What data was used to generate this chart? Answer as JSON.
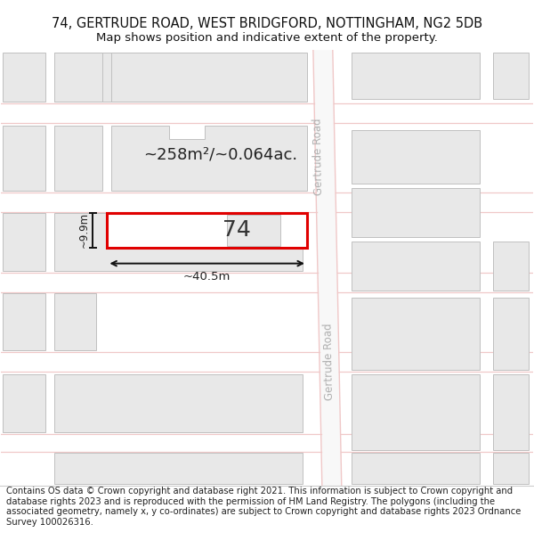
{
  "title_line1": "74, GERTRUDE ROAD, WEST BRIDGFORD, NOTTINGHAM, NG2 5DB",
  "title_line2": "Map shows position and indicative extent of the property.",
  "footer_text": "Contains OS data © Crown copyright and database right 2021. This information is subject to Crown copyright and database rights 2023 and is reproduced with the permission of HM Land Registry. The polygons (including the associated geometry, namely x, y co-ordinates) are subject to Crown copyright and database rights 2023 Ordnance Survey 100026316.",
  "bg_color": "#ffffff",
  "road_color": "#f0c8c8",
  "building_fill": "#e8e8e8",
  "building_edge": "#c0c0c0",
  "road_fill": "#f8f8f8",
  "highlight_fill": "#ffffff",
  "highlight_stroke": "#e00000",
  "road_label": "Gertrude Road",
  "property_label": "74",
  "area_label": "~258m²/~0.064ac.",
  "width_label": "~40.5m",
  "height_label": "~9.9m",
  "title_fontsize": 10.5,
  "subtitle_fontsize": 9.5,
  "footer_fontsize": 7.2,
  "road_label_fontsize": 8.5,
  "prop_num_fontsize": 18,
  "area_fontsize": 13,
  "meas_fontsize": 9.5
}
